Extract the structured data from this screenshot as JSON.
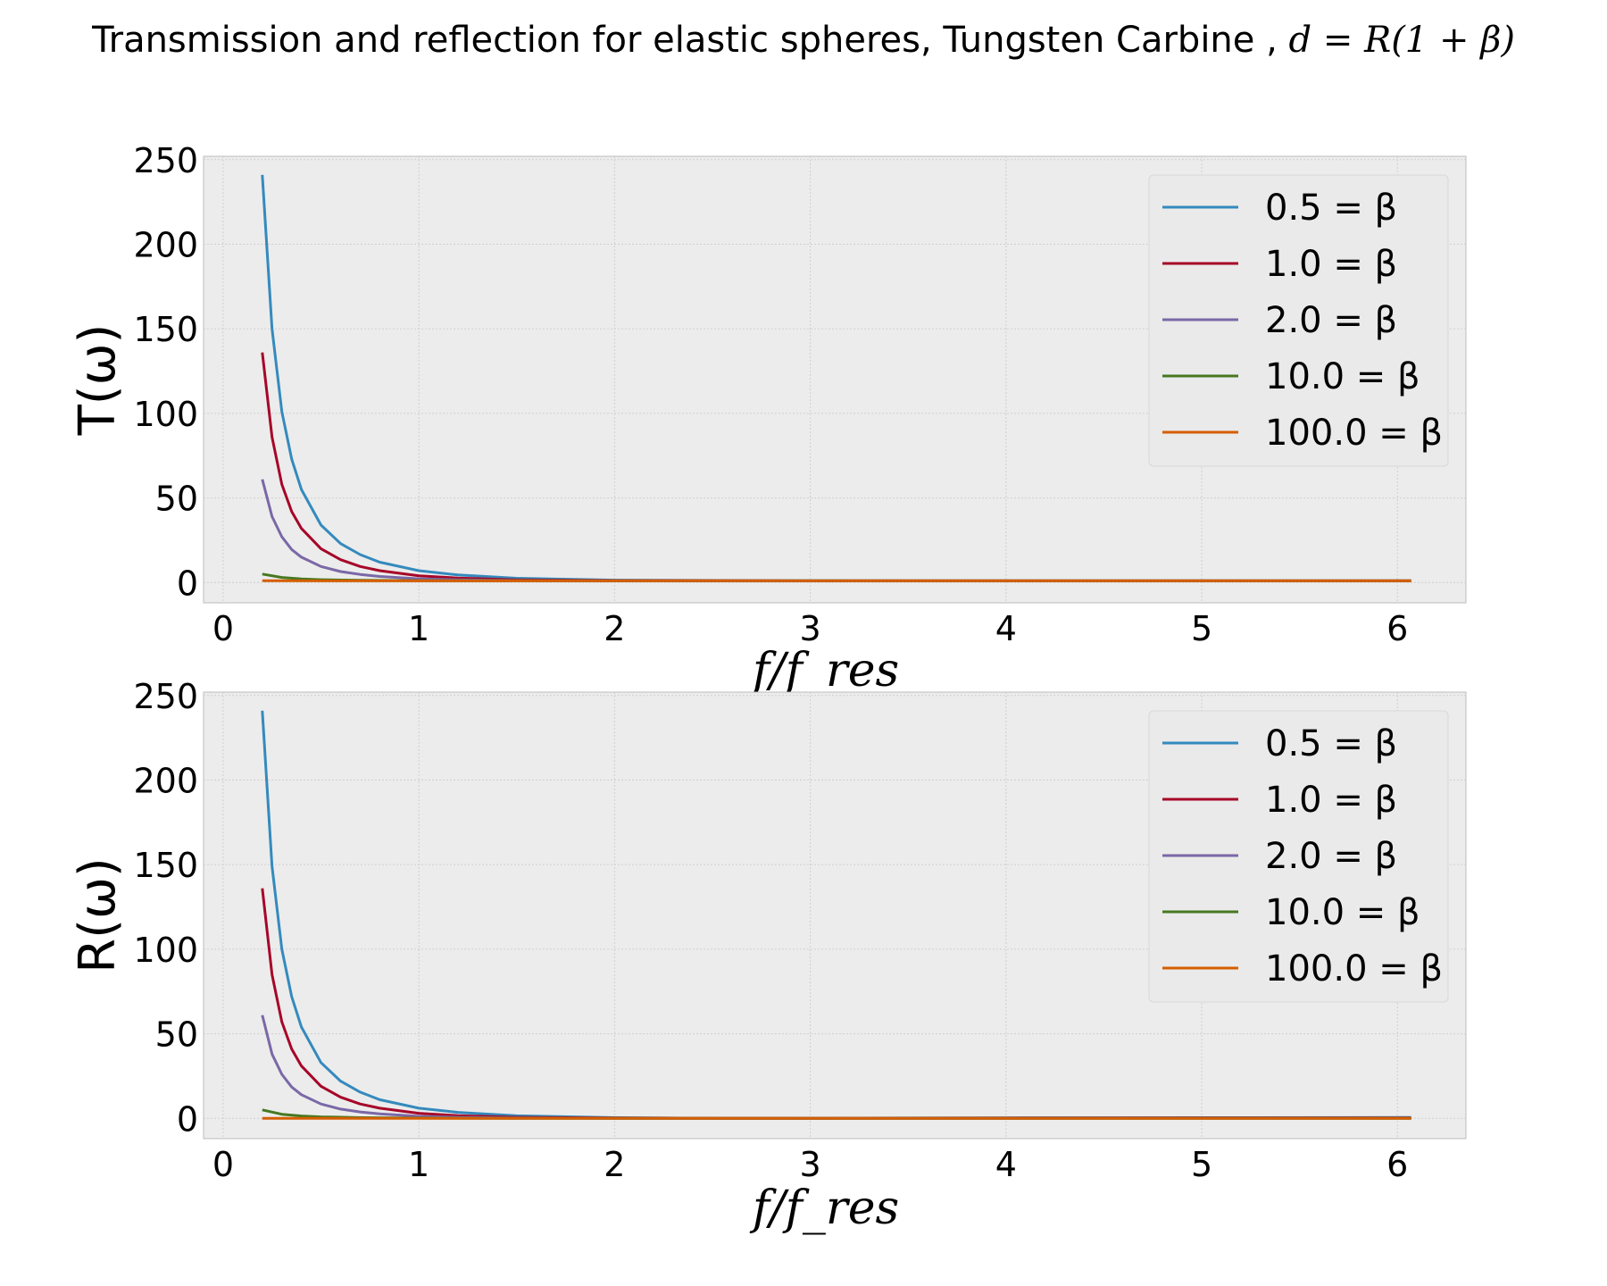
{
  "figure": {
    "suptitle_text": "Transmission and reflection for elastic spheres, Tungsten Carbine , ",
    "suptitle_math": "d = R(1 + β)"
  },
  "chart_data": [
    {
      "type": "line",
      "title": "",
      "xlabel": "f/f_res",
      "ylabel": "T(ω)",
      "xlim": [
        -0.1,
        6.35
      ],
      "ylim": [
        -12,
        252
      ],
      "xticks": [
        0,
        1,
        2,
        3,
        4,
        5,
        6
      ],
      "yticks": [
        0,
        50,
        100,
        150,
        200,
        250
      ],
      "grid": true,
      "legend_position": "top-right",
      "series": [
        {
          "name": "0.5 = β",
          "color": "#348ABD",
          "x": [
            0.2,
            0.25,
            0.3,
            0.35,
            0.4,
            0.5,
            0.6,
            0.7,
            0.8,
            1.0,
            1.2,
            1.5,
            2.0,
            3.0,
            4.0,
            5.0,
            6.07
          ],
          "y": [
            241,
            150,
            101,
            73,
            55,
            34,
            23,
            16.5,
            12,
            7,
            4.5,
            2.5,
            1.4,
            1.05,
            1.0,
            1.0,
            1.0
          ]
        },
        {
          "name": "1.0 = β",
          "color": "#A60628",
          "x": [
            0.2,
            0.25,
            0.3,
            0.35,
            0.4,
            0.5,
            0.6,
            0.7,
            0.8,
            1.0,
            1.2,
            1.5,
            2.0,
            3.0,
            4.0,
            5.0,
            6.07
          ],
          "y": [
            136,
            86,
            58,
            42,
            32,
            20,
            13.5,
            9.5,
            7,
            4,
            2.6,
            1.6,
            1.2,
            1.0,
            1.0,
            1.0,
            1.0
          ]
        },
        {
          "name": "2.0 = β",
          "color": "#7A68A6",
          "x": [
            0.2,
            0.25,
            0.3,
            0.35,
            0.4,
            0.5,
            0.6,
            0.7,
            0.8,
            1.0,
            1.2,
            1.5,
            2.0,
            3.0,
            4.0,
            5.0,
            6.07
          ],
          "y": [
            61,
            39,
            27,
            19.5,
            15,
            9.5,
            6.5,
            4.8,
            3.6,
            2.2,
            1.6,
            1.2,
            1.05,
            1.0,
            1.0,
            1.0,
            1.0
          ]
        },
        {
          "name": "10.0 = β",
          "color": "#467821",
          "x": [
            0.2,
            0.3,
            0.4,
            0.5,
            0.7,
            1.0,
            1.5,
            2.0,
            3.0,
            4.0,
            5.0,
            6.07
          ],
          "y": [
            5,
            3,
            2.1,
            1.7,
            1.3,
            1.1,
            1.02,
            1.0,
            1.0,
            1.0,
            1.0,
            1.0
          ]
        },
        {
          "name": "100.0 = β",
          "color": "#D55E00",
          "x": [
            0.2,
            0.5,
            1.0,
            2.0,
            3.0,
            4.0,
            5.0,
            6.07
          ],
          "y": [
            1.05,
            1.0,
            1.0,
            1.0,
            1.0,
            1.0,
            1.0,
            1.0
          ]
        }
      ]
    },
    {
      "type": "line",
      "title": "",
      "xlabel": "f/f_res",
      "ylabel": "R(ω)",
      "xlim": [
        -0.1,
        6.35
      ],
      "ylim": [
        -12,
        252
      ],
      "xticks": [
        0,
        1,
        2,
        3,
        4,
        5,
        6
      ],
      "yticks": [
        0,
        50,
        100,
        150,
        200,
        250
      ],
      "grid": true,
      "legend_position": "top-right",
      "series": [
        {
          "name": "0.5 = β",
          "color": "#348ABD",
          "x": [
            0.2,
            0.25,
            0.3,
            0.35,
            0.4,
            0.5,
            0.6,
            0.7,
            0.8,
            1.0,
            1.2,
            1.5,
            2.0,
            2.6,
            3.0,
            4.0,
            5.0,
            6.07
          ],
          "y": [
            241,
            149,
            100,
            72,
            54,
            33,
            22,
            15.5,
            11,
            6,
            3.5,
            1.5,
            0.4,
            0.0,
            0.1,
            0.3,
            0.4,
            0.5
          ]
        },
        {
          "name": "1.0 = β",
          "color": "#A60628",
          "x": [
            0.2,
            0.25,
            0.3,
            0.35,
            0.4,
            0.5,
            0.6,
            0.7,
            0.8,
            1.0,
            1.2,
            1.5,
            2.0,
            3.0,
            4.0,
            5.0,
            6.07
          ],
          "y": [
            136,
            85,
            57,
            41,
            31,
            19,
            12.5,
            8.5,
            6,
            3,
            1.6,
            0.6,
            0.2,
            0.1,
            0.2,
            0.3,
            0.3
          ]
        },
        {
          "name": "2.0 = β",
          "color": "#7A68A6",
          "x": [
            0.2,
            0.25,
            0.3,
            0.35,
            0.4,
            0.5,
            0.6,
            0.7,
            0.8,
            1.0,
            1.2,
            1.5,
            2.0,
            3.0,
            4.0,
            5.0,
            6.07
          ],
          "y": [
            61,
            38,
            26,
            18.5,
            14,
            8.5,
            5.5,
            3.8,
            2.6,
            1.2,
            0.6,
            0.2,
            0.05,
            0.02,
            0.05,
            0.1,
            0.1
          ]
        },
        {
          "name": "10.0 = β",
          "color": "#467821",
          "x": [
            0.2,
            0.3,
            0.4,
            0.5,
            0.7,
            1.0,
            1.5,
            2.0,
            3.0,
            4.0,
            5.0,
            6.07
          ],
          "y": [
            5,
            2.4,
            1.4,
            0.9,
            0.4,
            0.15,
            0.03,
            0.0,
            0.0,
            0.0,
            0.0,
            0.0
          ]
        },
        {
          "name": "100.0 = β",
          "color": "#D55E00",
          "x": [
            0.2,
            0.5,
            1.0,
            2.0,
            3.0,
            4.0,
            5.0,
            6.07
          ],
          "y": [
            0.05,
            0.0,
            0.0,
            0.0,
            0.0,
            0.0,
            0.0,
            0.0
          ]
        }
      ]
    }
  ]
}
